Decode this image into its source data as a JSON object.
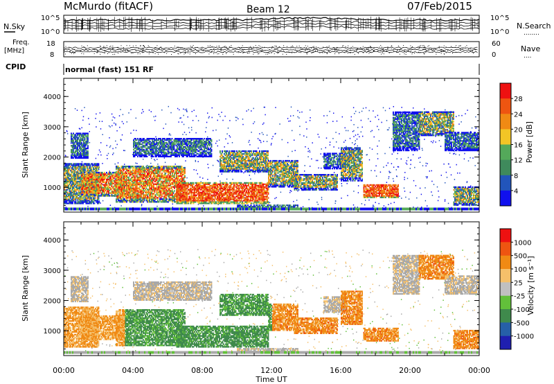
{
  "header": {
    "station": "McMurdo (fitACF)",
    "beam": "Beam 12",
    "date": "07/Feb/2015"
  },
  "strip_labels": {
    "nsky": "N.Sky",
    "nsearch": "N.Search",
    "nsearch_dots": "........",
    "freq_line1": "Freq.",
    "freq_line2": "[MHz]",
    "nave": "Nave",
    "nave_dots": "....",
    "cpid": "CPID",
    "cpid_value": "normal (fast) 151 RF",
    "nsky_ticks": [
      "10^5",
      "10^0"
    ],
    "nsearch_ticks": [
      "10^5",
      "10^0"
    ],
    "freq_ticks": [
      "18",
      "8"
    ],
    "nave_ticks": [
      "60",
      "0"
    ]
  },
  "colors": {
    "power_scale": [
      "#1010ee",
      "#2255bb",
      "#3f8a5c",
      "#54a95a",
      "#f2c526",
      "#f08a14",
      "#ee5511",
      "#ee1111"
    ],
    "velocity_scale": [
      "#1f1fb0",
      "#2660a8",
      "#3f8a4c",
      "#62c03a",
      "#c0c0c0",
      "#f5c06a",
      "#f08a14",
      "#ee5511",
      "#ee1111"
    ],
    "ground_scatter": "#a8a8a8"
  },
  "chart_data": [
    {
      "type": "heatmap",
      "id": "power",
      "ylabel": "Slant Range [km]",
      "colorbar_label": "Power [dB]",
      "colorbar_ticks": [
        "4",
        "8",
        "12",
        "16",
        "20",
        "24",
        "28"
      ],
      "y_ticks": [
        "1000",
        "2000",
        "3000",
        "4000"
      ],
      "ylim": [
        180,
        4600
      ],
      "xlim_hours": [
        0,
        24
      ]
    },
    {
      "type": "heatmap",
      "id": "velocity",
      "ylabel": "Slant Range [km]",
      "colorbar_label": "Velocity [m s⁻¹]",
      "colorbar_ticks": [
        "1000",
        "500",
        "100",
        "25",
        "-25",
        "-100",
        "-500",
        "-1000"
      ],
      "y_ticks": [
        "1000",
        "2000",
        "3000",
        "4000"
      ],
      "ylim": [
        180,
        4600
      ],
      "xlim_hours": [
        0,
        24
      ]
    }
  ],
  "x_axis": {
    "label": "Time UT",
    "ticks": [
      "00:00",
      "04:00",
      "08:00",
      "12:00",
      "16:00",
      "20:00",
      "00:00"
    ]
  }
}
